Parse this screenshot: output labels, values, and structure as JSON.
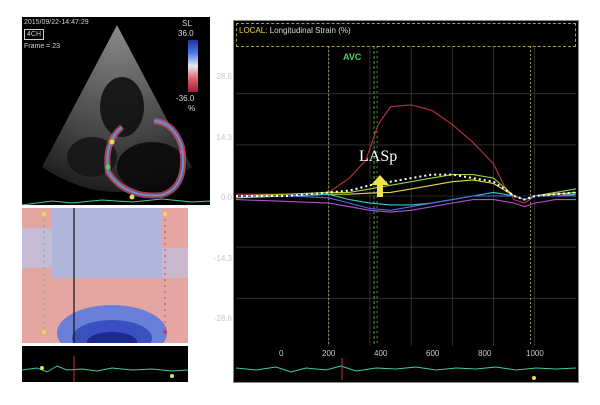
{
  "echo": {
    "timestamp": "2015/09/22-14:47:29",
    "view": "4CH",
    "frame": "Frame = 23",
    "colorbar": {
      "title": "SL",
      "max": "36.0",
      "min": "-36.0",
      "unit": "%"
    }
  },
  "chart_panel": {
    "local_prefix": "LOCAL:",
    "title": "Longitudinal Strain (%)",
    "avc_label": "AVC",
    "annotation": "LASp"
  },
  "chart_data": {
    "type": "line",
    "title": "Longitudinal Strain (%)",
    "xlabel": "",
    "ylabel": "",
    "xlim": [
      -450,
      1200
    ],
    "ylim": [
      -42,
      42
    ],
    "yticks": [
      "28.6",
      "14.3",
      "0.0",
      "-14.3",
      "-28.6"
    ],
    "ytick_values": [
      28.6,
      14.3,
      0.0,
      -14.3,
      -28.6
    ],
    "xticks": [
      "0",
      "200",
      "400",
      "600",
      "800",
      "1000"
    ],
    "xtick_values": [
      0,
      200,
      400,
      600,
      800,
      1000
    ],
    "avc_x": 220,
    "colors": {
      "red": "#c0303a",
      "green": "#9ccf3a",
      "yellow": "#e6d84a",
      "cyan": "#3fc6c6",
      "blue": "#4b6fe6",
      "magenta": "#b050d0",
      "white": "#ffffff"
    },
    "series": [
      {
        "color": "#c0303a",
        "x": [
          -450,
          -200,
          0,
          100,
          180,
          240,
          300,
          400,
          500,
          600,
          700,
          800,
          850,
          900,
          950,
          1000,
          1100,
          1200
        ],
        "y": [
          0.5,
          0.5,
          1,
          5,
          10,
          20,
          25,
          25.5,
          24,
          20,
          15,
          9,
          3,
          -1,
          -2,
          0,
          1,
          0
        ]
      },
      {
        "color": "#9ccf3a",
        "x": [
          -450,
          -200,
          0,
          100,
          200,
          300,
          400,
          500,
          600,
          700,
          800,
          900,
          950,
          1000,
          1100,
          1200
        ],
        "y": [
          0,
          0.5,
          1,
          1,
          2,
          3,
          4,
          5,
          6,
          6,
          5,
          0,
          -1,
          0,
          1,
          2
        ]
      },
      {
        "color": "#e6d84a",
        "x": [
          -450,
          -200,
          0,
          100,
          200,
          300,
          400,
          500,
          600,
          700,
          800,
          900,
          950,
          1000,
          1100,
          1200
        ],
        "y": [
          -0.5,
          0,
          0.5,
          0.5,
          0.8,
          1,
          2,
          3,
          4,
          4.5,
          3.5,
          0,
          -1,
          0,
          0.5,
          1
        ]
      },
      {
        "color": "#3fc6c6",
        "x": [
          -450,
          -200,
          0,
          100,
          200,
          300,
          400,
          500,
          600,
          700,
          800,
          900,
          950,
          1000,
          1100,
          1200
        ],
        "y": [
          0,
          0,
          0.5,
          -1,
          -2,
          -2.5,
          -2.5,
          -2,
          -1,
          0,
          1,
          0,
          -1,
          0,
          0,
          0.5
        ]
      },
      {
        "color": "#4b6fe6",
        "x": [
          -450,
          -200,
          0,
          100,
          200,
          300,
          400,
          500,
          600,
          700,
          800,
          900,
          950,
          1000,
          1100,
          1200
        ],
        "y": [
          0,
          0,
          -0.5,
          -2,
          -3.5,
          -4,
          -3,
          -2,
          -1,
          0,
          0,
          0,
          -1,
          0,
          0,
          0
        ]
      },
      {
        "color": "#b050d0",
        "x": [
          -450,
          -200,
          0,
          100,
          200,
          300,
          400,
          500,
          600,
          700,
          800,
          900,
          950,
          1000,
          1100,
          1200
        ],
        "y": [
          -1,
          -1.5,
          -2,
          -3,
          -4,
          -4.5,
          -4,
          -3,
          -2,
          -1,
          -1,
          -2,
          -3,
          -2,
          -1,
          -1
        ]
      },
      {
        "color": "#ffffff",
        "dashed": true,
        "x": [
          -450,
          -200,
          0,
          100,
          200,
          300,
          400,
          500,
          600,
          700,
          800,
          900,
          950,
          1000,
          1100,
          1200
        ],
        "y": [
          0,
          0,
          1,
          1.5,
          3,
          4,
          5,
          6,
          6,
          5,
          4,
          0,
          -1,
          0,
          0.5,
          1
        ]
      }
    ]
  }
}
